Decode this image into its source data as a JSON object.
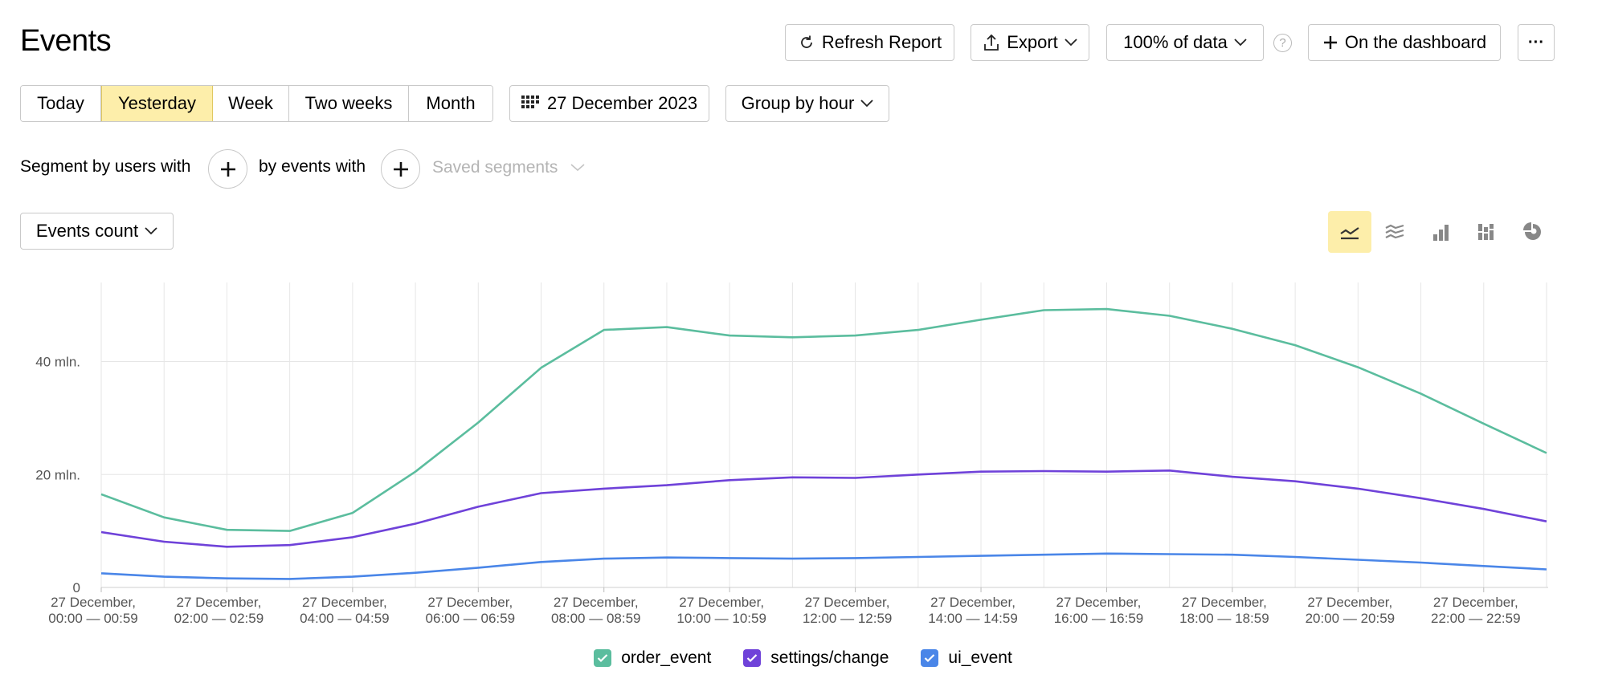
{
  "page": {
    "title": "Events"
  },
  "toolbar": {
    "refresh_label": "Refresh Report",
    "export_label": "Export",
    "sampling_label": "100% of data",
    "help_label": "?",
    "dashboard_label": "On the dashboard",
    "more_label": "···"
  },
  "period": {
    "tabs": [
      "Today",
      "Yesterday",
      "Week",
      "Two weeks",
      "Month"
    ],
    "active": "Yesterday",
    "date_label": "27 December 2023",
    "group_label": "Group by hour"
  },
  "segments": {
    "users_label": "Segment by users with",
    "events_label": "by events with",
    "saved_label": "Saved segments"
  },
  "metric": {
    "label": "Events count"
  },
  "chart_views": [
    "line-chart-icon",
    "stacked-area-icon",
    "bar-chart-icon",
    "stacked-bar-icon",
    "pie-chart-icon"
  ],
  "colors": {
    "order_event": "#5bbd9e",
    "settings_change": "#6f42d9",
    "ui_event": "#4a86e8",
    "active_bg": "#fdeeaa"
  },
  "chart_data": {
    "type": "line",
    "x": [
      "00",
      "01",
      "02",
      "03",
      "04",
      "05",
      "06",
      "07",
      "08",
      "09",
      "10",
      "11",
      "12",
      "13",
      "14",
      "15",
      "16",
      "17",
      "18",
      "19",
      "20",
      "21",
      "22",
      "23"
    ],
    "x_tick_labels": [
      {
        "line1": "27 December,",
        "line2": "00:00 — 00:59"
      },
      {
        "line1": "27 December,",
        "line2": "02:00 — 02:59"
      },
      {
        "line1": "27 December,",
        "line2": "04:00 — 04:59"
      },
      {
        "line1": "27 December,",
        "line2": "06:00 — 06:59"
      },
      {
        "line1": "27 December,",
        "line2": "08:00 — 08:59"
      },
      {
        "line1": "27 December,",
        "line2": "10:00 — 10:59"
      },
      {
        "line1": "27 December,",
        "line2": "12:00 — 12:59"
      },
      {
        "line1": "27 December,",
        "line2": "14:00 — 14:59"
      },
      {
        "line1": "27 December,",
        "line2": "16:00 — 16:59"
      },
      {
        "line1": "27 December,",
        "line2": "18:00 — 18:59"
      },
      {
        "line1": "27 December,",
        "line2": "20:00 — 20:59"
      },
      {
        "line1": "27 December,",
        "line2": "22:00 — 22:59"
      }
    ],
    "y_ticks": [
      {
        "value": 0,
        "label": "0"
      },
      {
        "value": 20,
        "label": "20 mln."
      },
      {
        "value": 40,
        "label": "40 mln."
      }
    ],
    "ylim": [
      0,
      54
    ],
    "grid": true,
    "legend_position": "bottom",
    "series": [
      {
        "name": "order_event",
        "color": "#5bbd9e",
        "values": [
          16.5,
          12.4,
          10.2,
          10.0,
          13.2,
          20.5,
          29.2,
          38.9,
          45.6,
          46.1,
          44.6,
          44.3,
          44.6,
          45.6,
          47.4,
          49.1,
          49.3,
          48.1,
          45.8,
          42.9,
          39.0,
          34.3,
          29.0,
          23.8
        ]
      },
      {
        "name": "settings/change",
        "color": "#6f42d9",
        "values": [
          9.8,
          8.1,
          7.2,
          7.5,
          8.9,
          11.3,
          14.3,
          16.7,
          17.5,
          18.1,
          19.0,
          19.5,
          19.4,
          20.0,
          20.5,
          20.6,
          20.5,
          20.7,
          19.6,
          18.8,
          17.5,
          15.8,
          13.9,
          11.7
        ]
      },
      {
        "name": "ui_event",
        "color": "#4a86e8",
        "values": [
          2.5,
          1.9,
          1.6,
          1.5,
          1.9,
          2.6,
          3.5,
          4.5,
          5.1,
          5.3,
          5.2,
          5.1,
          5.2,
          5.4,
          5.6,
          5.8,
          6.0,
          5.9,
          5.8,
          5.4,
          4.9,
          4.4,
          3.8,
          3.2
        ]
      }
    ]
  }
}
